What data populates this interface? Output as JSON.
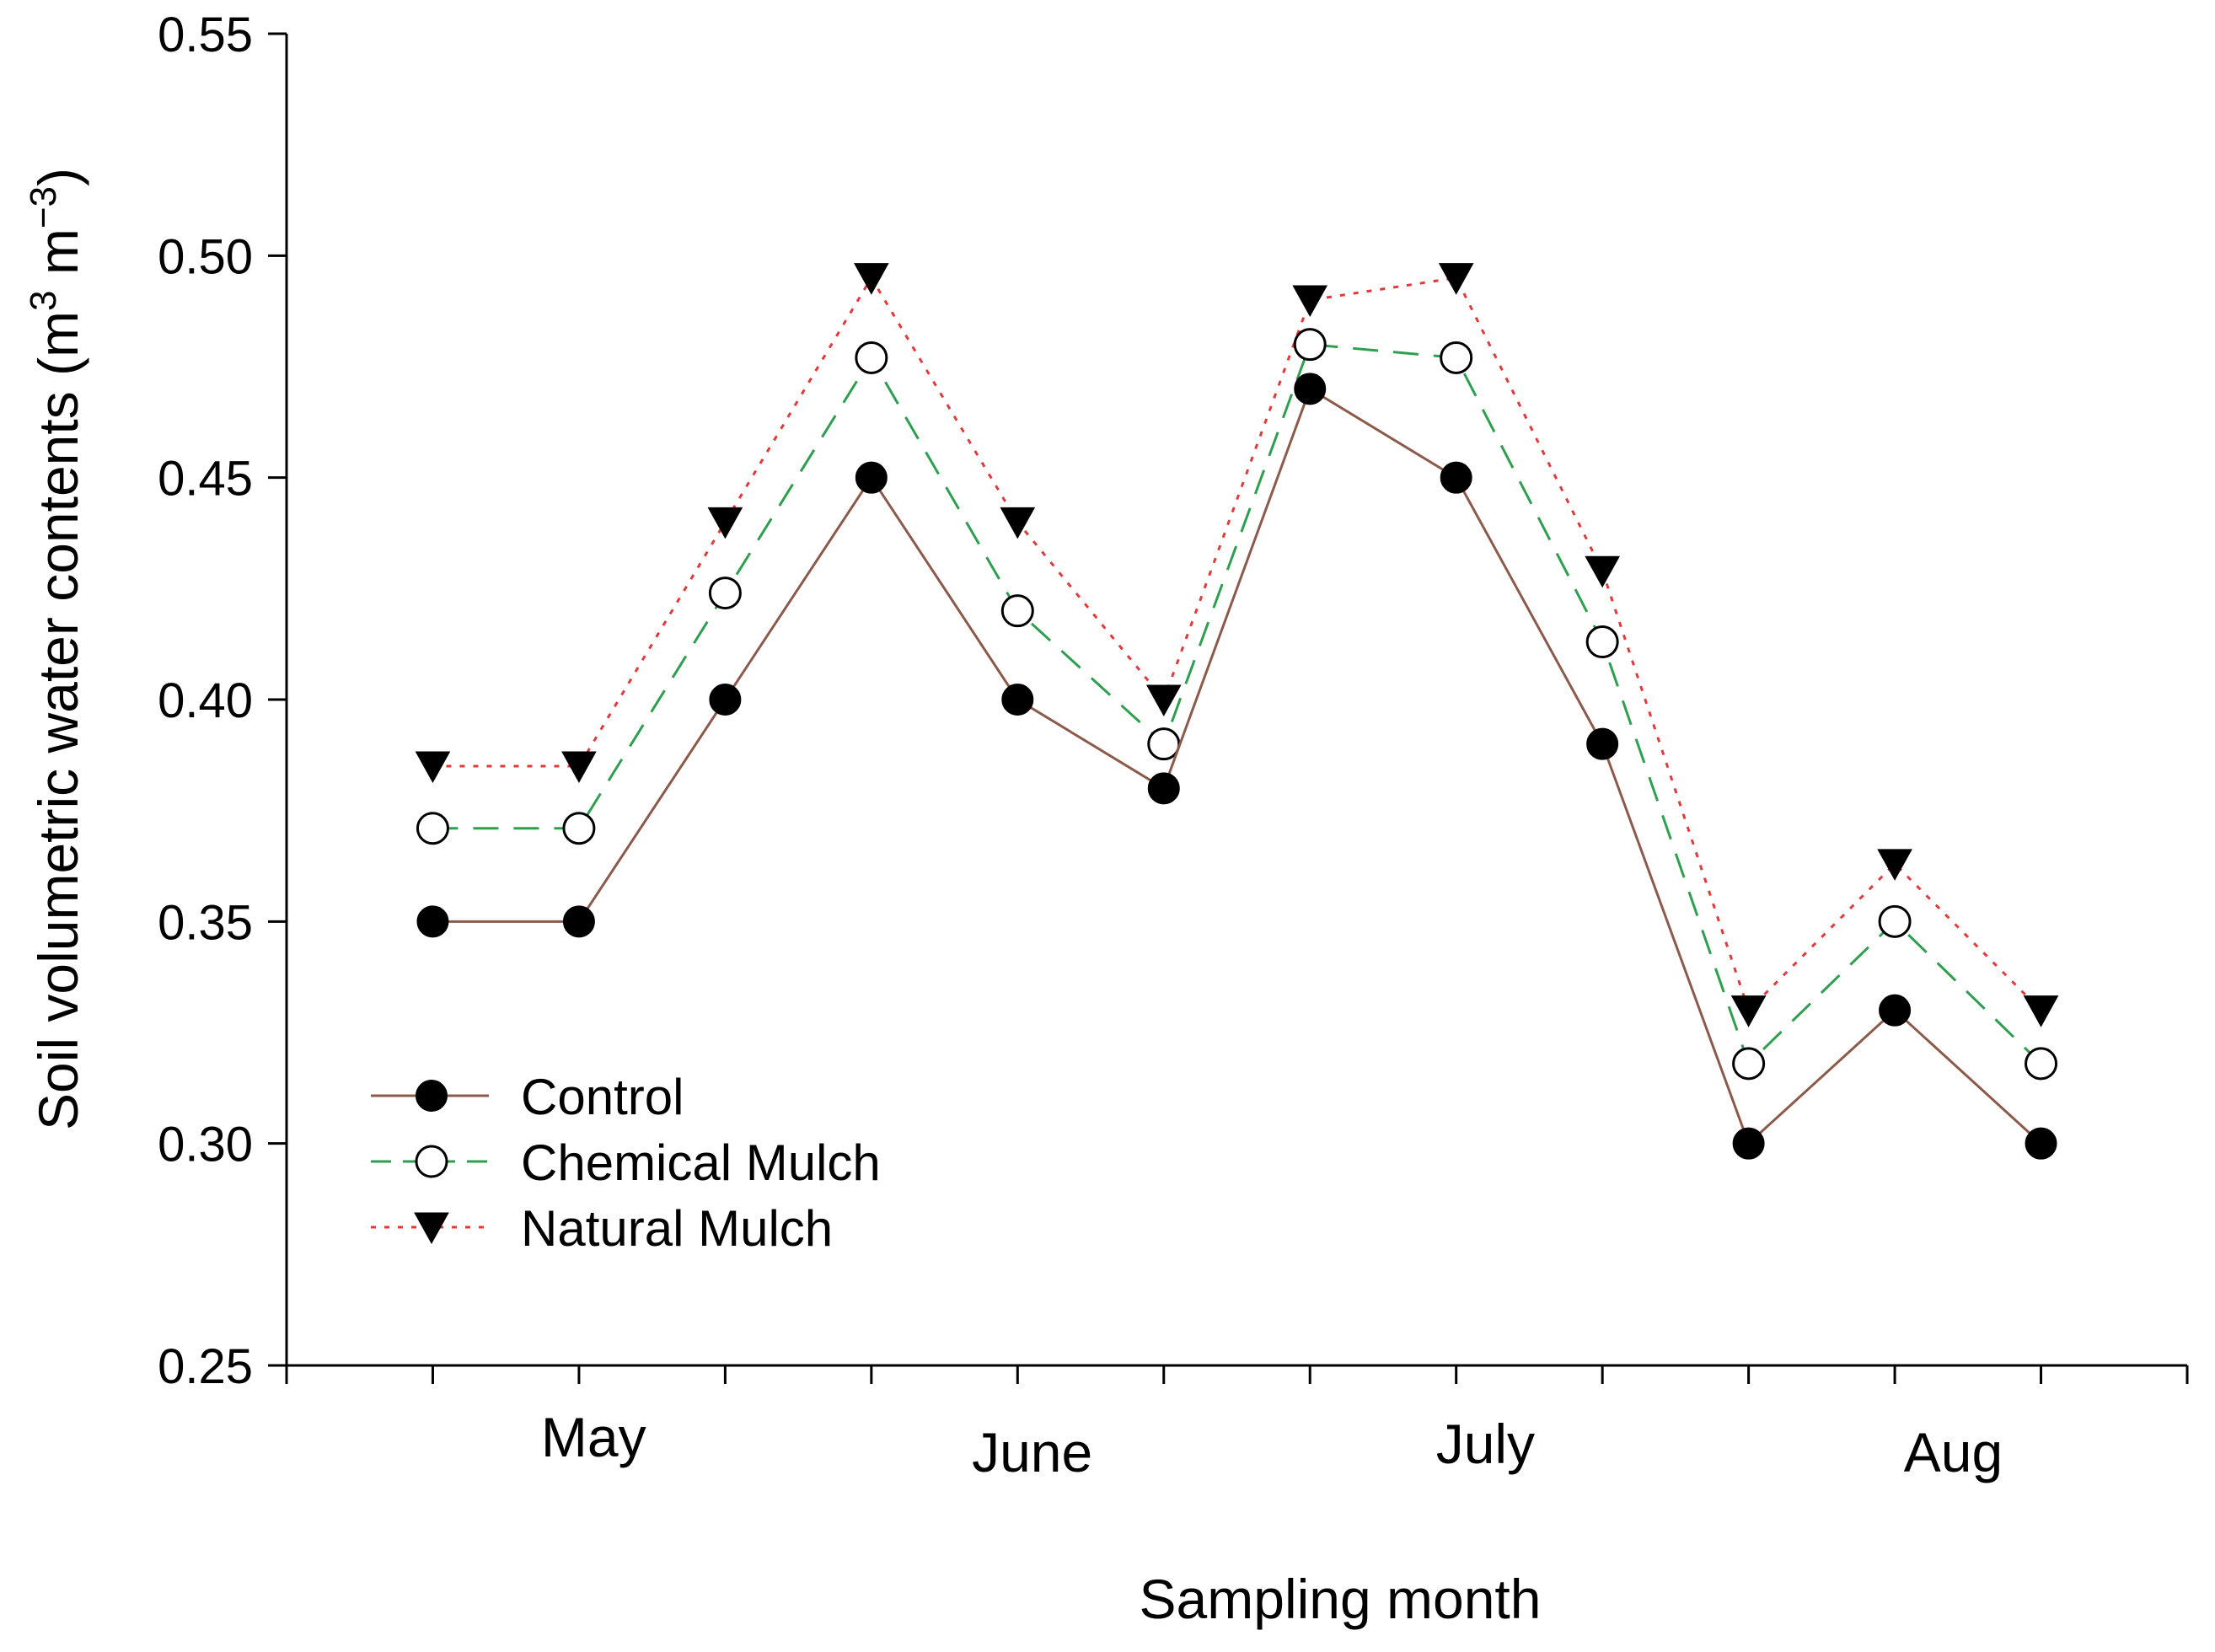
{
  "chart_data": {
    "type": "line",
    "title": "",
    "xlabel": "Sampling month",
    "ylabel": "Soil volumetric water contents (m",
    "ylabel_sup1": "3",
    "ylabel_mid": " m",
    "ylabel_sup2": "−3",
    "ylabel_end": ")",
    "ylim": [
      0.25,
      0.55
    ],
    "y_ticks": [
      "0.25",
      "0.30",
      "0.35",
      "0.40",
      "0.45",
      "0.50",
      "0.55"
    ],
    "x": [
      1,
      2,
      3,
      4,
      5,
      6,
      7,
      8,
      9,
      10,
      11,
      12
    ],
    "xlim": [
      0,
      13
    ],
    "month_labels": [
      {
        "label": "May",
        "x": 2.1
      },
      {
        "label": "June",
        "x": 5.1
      },
      {
        "label": "July",
        "x": 8.2
      },
      {
        "label": "Aug",
        "x": 11.4
      }
    ],
    "legend_position": "lower-left",
    "grid": false,
    "series": [
      {
        "name": "Control",
        "color": "#8B5A4A",
        "dash": "solid",
        "marker": "filled-circle",
        "values": [
          0.35,
          0.35,
          0.4,
          0.45,
          0.4,
          0.38,
          0.47,
          0.45,
          0.39,
          0.3,
          0.33,
          0.3
        ]
      },
      {
        "name": "Chemical Mulch",
        "color": "#2E9E4F",
        "dash": "dashed",
        "marker": "open-circle",
        "values": [
          0.371,
          0.371,
          0.424,
          0.477,
          0.42,
          0.39,
          0.48,
          0.477,
          0.413,
          0.318,
          0.35,
          0.318
        ]
      },
      {
        "name": "Natural Mulch",
        "color": "#E03A3A",
        "dash": "dotted",
        "marker": "filled-triangle-down",
        "values": [
          0.385,
          0.385,
          0.44,
          0.495,
          0.44,
          0.4,
          0.49,
          0.495,
          0.429,
          0.33,
          0.363,
          0.33
        ]
      }
    ]
  }
}
